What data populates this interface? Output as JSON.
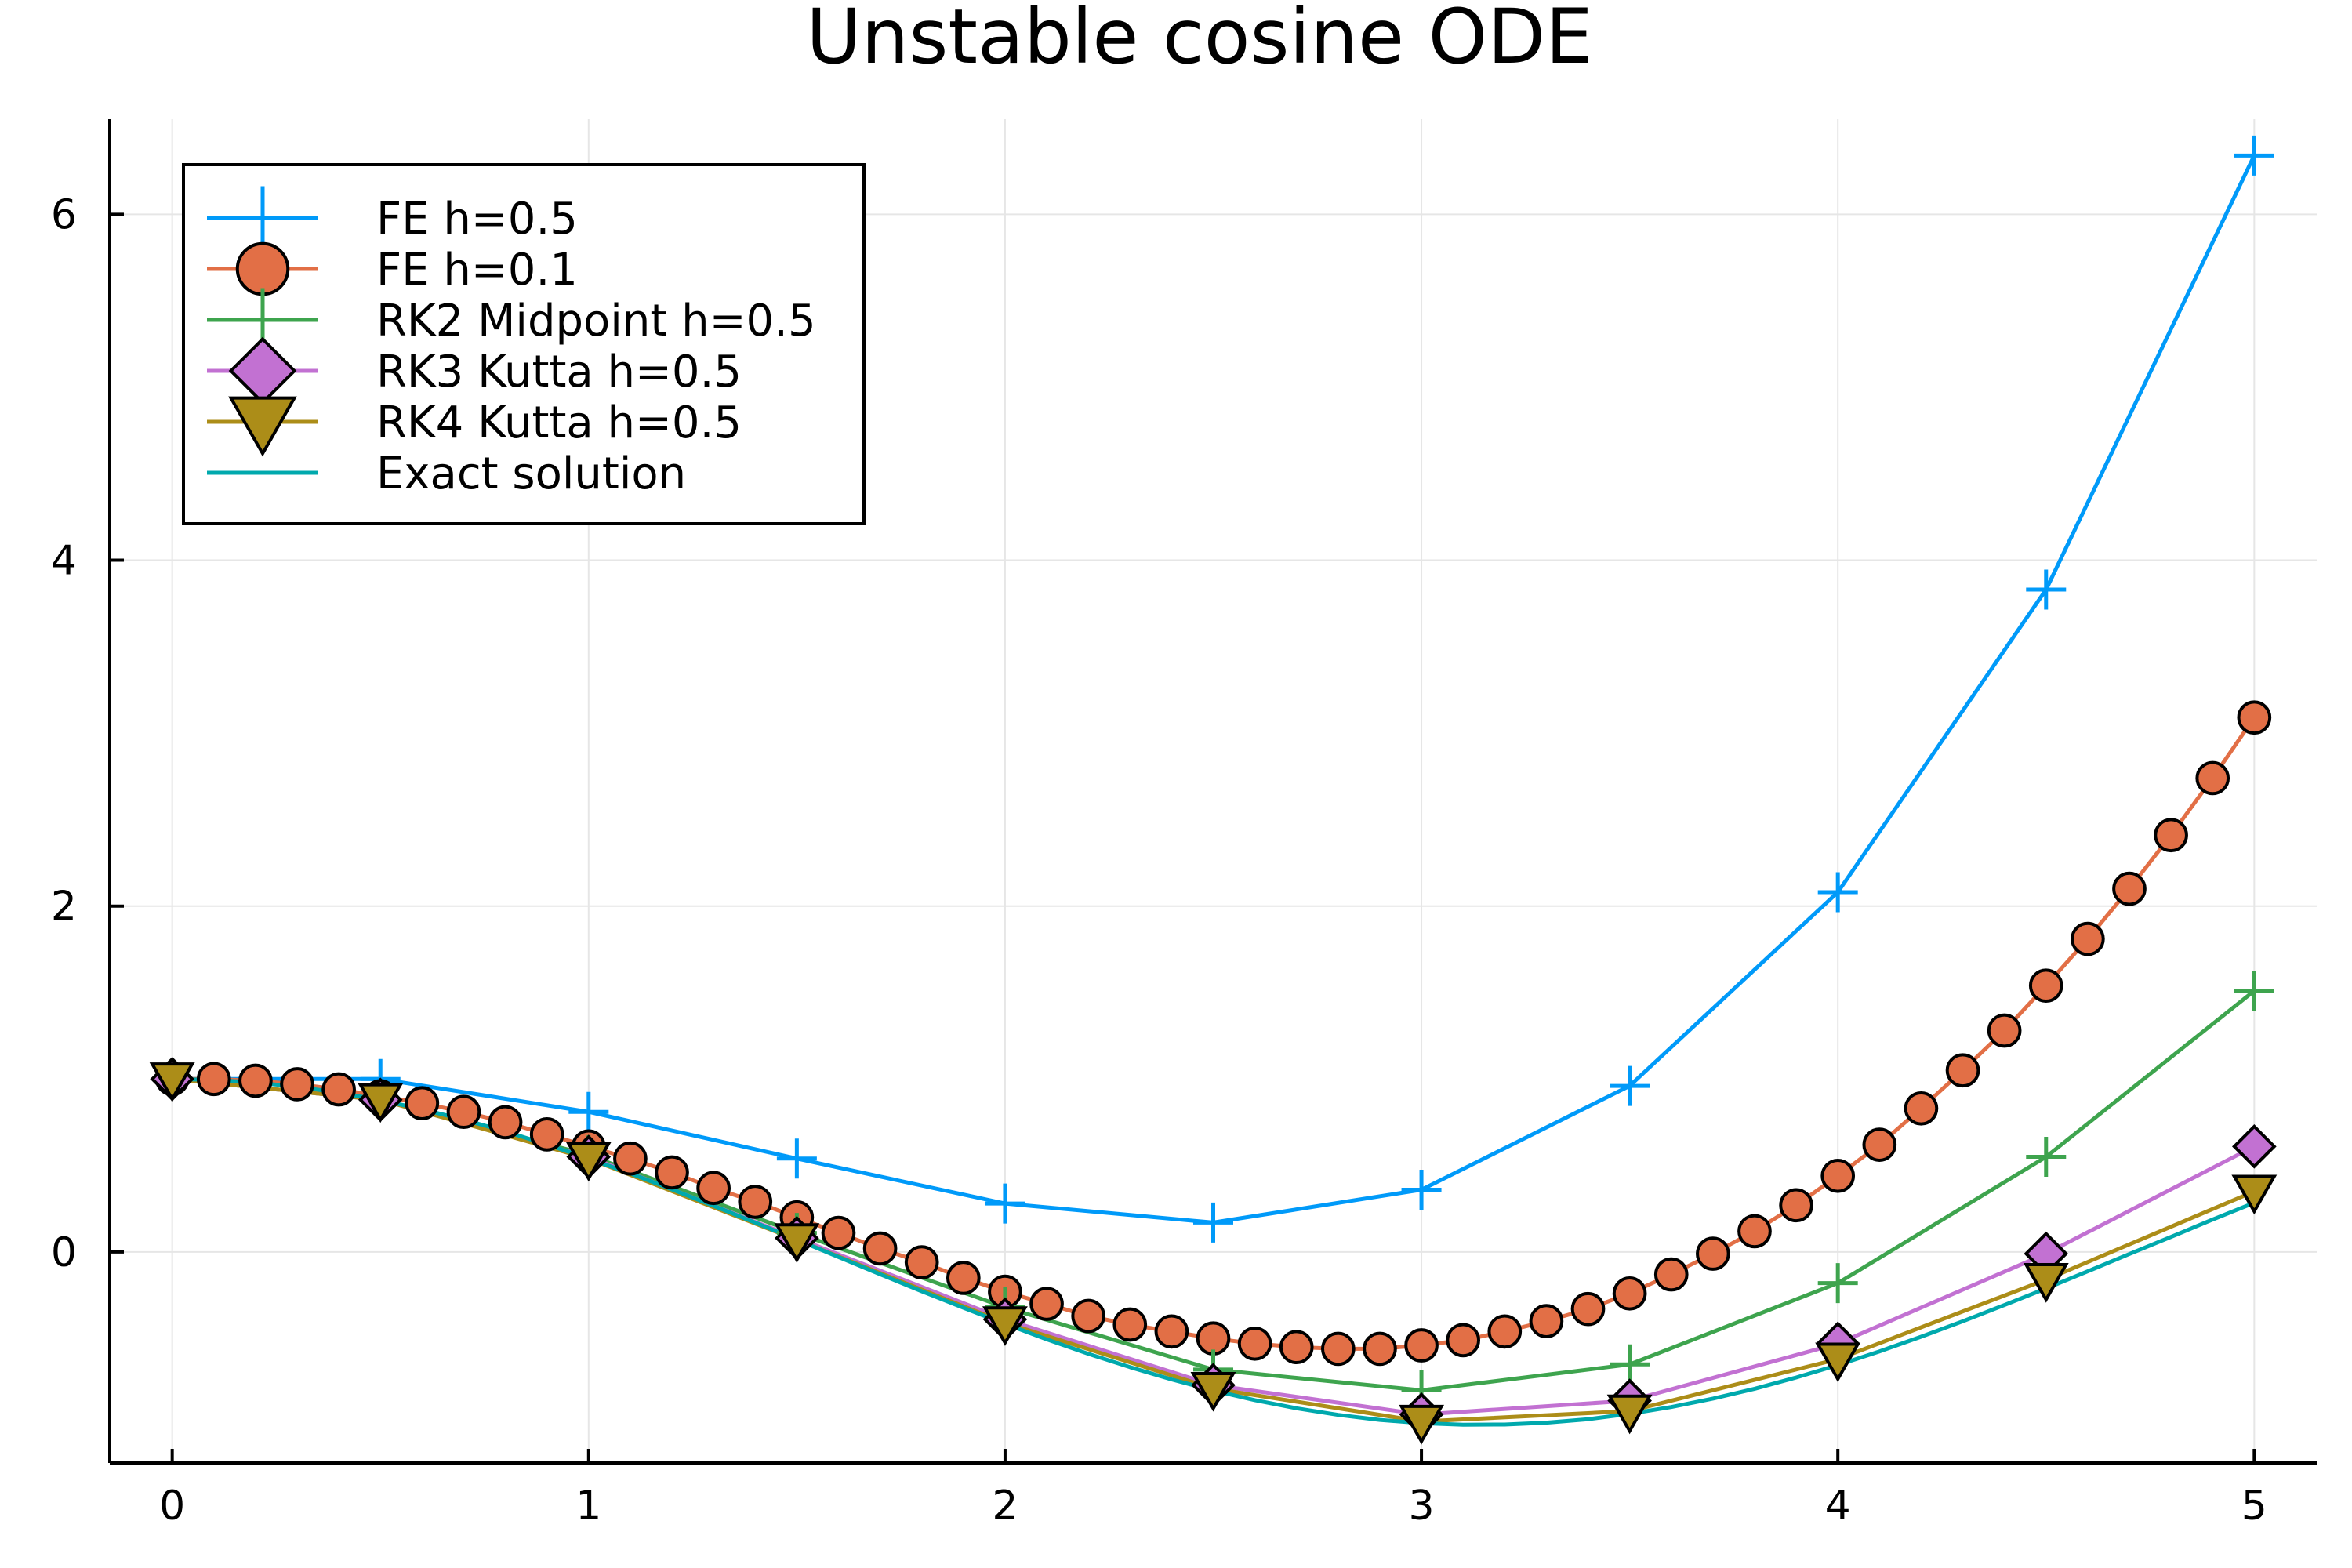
{
  "chart_data": {
    "type": "line",
    "title": "Unstable cosine ODE",
    "xlabel": "",
    "ylabel": "",
    "xlim": [
      -0.15,
      5.15
    ],
    "ylim": [
      -1.22,
      6.55
    ],
    "xticks": [
      0,
      1,
      2,
      3,
      4,
      5
    ],
    "yticks": [
      0,
      2,
      4,
      6
    ],
    "grid": true,
    "legend_position": "top-left",
    "series": [
      {
        "name": "FE h=0.5",
        "color": "#009af9",
        "marker": "plus",
        "x": [
          0,
          0.5,
          1.0,
          1.5,
          2.0,
          2.5,
          3.0,
          3.5,
          4.0,
          4.5,
          5.0
        ],
        "y": [
          1.0,
          1.0,
          0.81,
          0.54,
          0.28,
          0.17,
          0.36,
          0.96,
          2.08,
          3.83,
          6.34
        ]
      },
      {
        "name": "FE h=0.1",
        "color": "#e26f46",
        "marker": "circle",
        "x": [
          0,
          0.1,
          0.2,
          0.3,
          0.4,
          0.5,
          0.6,
          0.7,
          0.8,
          0.9,
          1.0,
          1.1,
          1.2,
          1.3,
          1.4,
          1.5,
          1.6,
          1.7,
          1.8,
          1.9,
          2.0,
          2.1,
          2.2,
          2.3,
          2.4,
          2.5,
          2.6,
          2.7,
          2.8,
          2.9,
          3.0,
          3.1,
          3.2,
          3.3,
          3.4,
          3.5,
          3.6,
          3.7,
          3.8,
          3.9,
          4.0,
          4.1,
          4.2,
          4.3,
          4.4,
          4.5,
          4.6,
          4.7,
          4.8,
          4.9,
          5.0
        ],
        "y": [
          1.0,
          1.0,
          0.99,
          0.97,
          0.94,
          0.9,
          0.86,
          0.81,
          0.75,
          0.68,
          0.61,
          0.54,
          0.46,
          0.37,
          0.29,
          0.2,
          0.11,
          0.02,
          -0.06,
          -0.15,
          -0.23,
          -0.3,
          -0.37,
          -0.42,
          -0.46,
          -0.5,
          -0.53,
          -0.55,
          -0.56,
          -0.56,
          -0.54,
          -0.51,
          -0.46,
          -0.4,
          -0.33,
          -0.24,
          -0.13,
          -0.01,
          0.12,
          0.27,
          0.44,
          0.62,
          0.83,
          1.05,
          1.28,
          1.54,
          1.81,
          2.1,
          2.41,
          2.74,
          3.09
        ]
      },
      {
        "name": "RK2 Midpoint h=0.5",
        "color": "#3ea44e",
        "marker": "plus",
        "x": [
          0,
          0.5,
          1.0,
          1.5,
          2.0,
          2.5,
          3.0,
          3.5,
          4.0,
          4.5,
          5.0
        ],
        "y": [
          1.0,
          0.88,
          0.56,
          0.11,
          -0.32,
          -0.68,
          -0.8,
          -0.65,
          -0.18,
          0.55,
          1.51
        ]
      },
      {
        "name": "RK3 Kutta h=0.5",
        "color": "#c271d2",
        "marker": "diamond",
        "x": [
          0,
          0.5,
          1.0,
          1.5,
          2.0,
          2.5,
          3.0,
          3.5,
          4.0,
          4.5,
          5.0
        ],
        "y": [
          1.0,
          0.88,
          0.55,
          0.08,
          -0.39,
          -0.77,
          -0.94,
          -0.86,
          -0.53,
          -0.01,
          0.61
        ]
      },
      {
        "name": "RK4 Kutta h=0.5",
        "color": "#ac8d18",
        "marker": "triangle-down",
        "x": [
          0,
          0.5,
          1.0,
          1.5,
          2.0,
          2.5,
          3.0,
          3.5,
          4.0,
          4.5,
          5.0
        ],
        "y": [
          1.0,
          0.88,
          0.54,
          0.07,
          -0.41,
          -0.79,
          -0.98,
          -0.92,
          -0.62,
          -0.16,
          0.35
        ]
      },
      {
        "name": "Exact solution",
        "color": "#00a9ad",
        "marker": "none",
        "x": [
          0,
          0.1,
          0.2,
          0.3,
          0.4,
          0.5,
          0.6,
          0.7,
          0.8,
          0.9,
          1.0,
          1.1,
          1.2,
          1.3,
          1.4,
          1.5,
          1.6,
          1.7,
          1.8,
          1.9,
          2.0,
          2.1,
          2.2,
          2.3,
          2.4,
          2.5,
          2.6,
          2.7,
          2.8,
          2.9,
          3.0,
          3.1,
          3.2,
          3.3,
          3.4,
          3.5,
          3.6,
          3.7,
          3.8,
          3.9,
          4.0,
          4.1,
          4.2,
          4.3,
          4.4,
          4.5,
          4.6,
          4.7,
          4.8,
          4.9,
          5.0
        ],
        "y": [
          1.0,
          0.995,
          0.98,
          0.955,
          0.921,
          0.878,
          0.825,
          0.765,
          0.697,
          0.622,
          0.54,
          0.454,
          0.362,
          0.267,
          0.17,
          0.071,
          -0.029,
          -0.129,
          -0.227,
          -0.323,
          -0.416,
          -0.505,
          -0.589,
          -0.666,
          -0.737,
          -0.801,
          -0.857,
          -0.904,
          -0.942,
          -0.971,
          -0.99,
          -0.999,
          -0.998,
          -0.987,
          -0.967,
          -0.936,
          -0.897,
          -0.848,
          -0.791,
          -0.726,
          -0.654,
          -0.575,
          -0.49,
          -0.401,
          -0.307,
          -0.211,
          -0.112,
          -0.012,
          0.087,
          0.187,
          0.284
        ]
      }
    ]
  }
}
